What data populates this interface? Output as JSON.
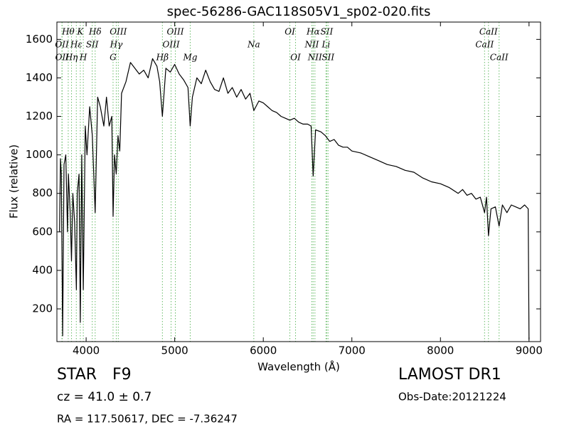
{
  "chart_data": {
    "type": "line",
    "title": "spec-56286-GAC118S05V1_sp02-020.fits",
    "x_label": "Wavelength (Å)",
    "y_label": "Flux (relative)",
    "color": "#000000",
    "annotation_color": "#66bb66",
    "xlim": [
      3670,
      9130
    ],
    "ylim": [
      30,
      1690
    ],
    "xticks": [
      4000,
      5000,
      6000,
      7000,
      8000,
      9000
    ],
    "yticks": [
      200,
      400,
      600,
      800,
      1000,
      1200,
      1400,
      1600
    ],
    "x": [
      3700,
      3710,
      3720,
      3735,
      3750,
      3770,
      3790,
      3800,
      3820,
      3835,
      3850,
      3870,
      3890,
      3900,
      3920,
      3934,
      3950,
      3968,
      3990,
      4010,
      4040,
      4070,
      4102,
      4130,
      4160,
      4200,
      4230,
      4260,
      4290,
      4304,
      4320,
      4340,
      4360,
      4380,
      4400,
      4450,
      4500,
      4550,
      4600,
      4650,
      4700,
      4750,
      4800,
      4830,
      4861,
      4900,
      4950,
      5000,
      5050,
      5100,
      5150,
      5175,
      5200,
      5250,
      5300,
      5350,
      5400,
      5450,
      5500,
      5550,
      5600,
      5650,
      5700,
      5750,
      5800,
      5850,
      5893,
      5950,
      6000,
      6050,
      6100,
      6150,
      6200,
      6250,
      6300,
      6350,
      6400,
      6450,
      6500,
      6540,
      6563,
      6590,
      6650,
      6700,
      6750,
      6800,
      6850,
      6900,
      6950,
      7000,
      7100,
      7200,
      7300,
      7400,
      7500,
      7600,
      7700,
      7800,
      7900,
      8000,
      8100,
      8200,
      8250,
      8300,
      8350,
      8400,
      8450,
      8498,
      8520,
      8542,
      8570,
      8620,
      8662,
      8700,
      8750,
      8800,
      8850,
      8900,
      8950,
      8990,
      9000
    ],
    "values": [
      600,
      980,
      900,
      60,
      950,
      1000,
      600,
      900,
      700,
      450,
      800,
      650,
      300,
      800,
      900,
      130,
      1000,
      300,
      1150,
      1000,
      1250,
      1100,
      700,
      1300,
      1250,
      1150,
      1300,
      1150,
      1200,
      680,
      1000,
      900,
      1100,
      1020,
      1320,
      1380,
      1480,
      1450,
      1420,
      1440,
      1400,
      1500,
      1460,
      1380,
      1200,
      1450,
      1430,
      1470,
      1420,
      1390,
      1350,
      1150,
      1300,
      1400,
      1370,
      1440,
      1380,
      1340,
      1330,
      1400,
      1320,
      1350,
      1300,
      1340,
      1290,
      1320,
      1230,
      1280,
      1270,
      1250,
      1230,
      1220,
      1200,
      1190,
      1180,
      1190,
      1170,
      1160,
      1160,
      1150,
      890,
      1130,
      1120,
      1100,
      1070,
      1080,
      1050,
      1040,
      1040,
      1020,
      1010,
      990,
      970,
      950,
      940,
      920,
      910,
      880,
      860,
      850,
      830,
      800,
      820,
      790,
      800,
      770,
      780,
      700,
      780,
      580,
      720,
      730,
      630,
      740,
      700,
      740,
      730,
      720,
      740,
      720,
      40
    ],
    "line_labels": [
      [
        {
          "x": 3798,
          "label": "Hθ"
        },
        {
          "x": 3934,
          "label": "K"
        },
        {
          "x": 4102,
          "label": "Hδ"
        },
        {
          "x": 4363,
          "label": "OIII"
        },
        {
          "x": 5007,
          "label": "OIII"
        },
        {
          "x": 6300,
          "label": "OI"
        },
        {
          "x": 6563,
          "label": "Hα"
        },
        {
          "x": 6716,
          "label": "SII"
        },
        {
          "x": 8542,
          "label": "CaII"
        }
      ],
      [
        {
          "x": 3727,
          "label": "OII"
        },
        {
          "x": 3889,
          "label": "Hε"
        },
        {
          "x": 4069,
          "label": "SII"
        },
        {
          "x": 4340,
          "label": "Hγ"
        },
        {
          "x": 4959,
          "label": "OIII"
        },
        {
          "x": 5893,
          "label": "Na"
        },
        {
          "x": 6548,
          "label": "NII"
        },
        {
          "x": 6708,
          "label": "Li"
        },
        {
          "x": 8498,
          "label": "CaII"
        }
      ],
      [
        {
          "x": 3729,
          "label": "OII"
        },
        {
          "x": 3835,
          "label": "Hη"
        },
        {
          "x": 3968,
          "label": "H"
        },
        {
          "x": 4304,
          "label": "G"
        },
        {
          "x": 4861,
          "label": "Hβ"
        },
        {
          "x": 5175,
          "label": "Mg"
        },
        {
          "x": 6364,
          "label": "OI"
        },
        {
          "x": 6583,
          "label": "NII"
        },
        {
          "x": 6731,
          "label": "SII"
        },
        {
          "x": 8662,
          "label": "CaII"
        }
      ]
    ]
  },
  "footer": {
    "object_class": "STAR",
    "subclass": "F9",
    "cz": "cz = 41.0  ± 0.7",
    "coords": "RA = 117.50617, DEC = -7.36247",
    "survey": "LAMOST DR1",
    "obs_date": "Obs-Date:20121224"
  }
}
